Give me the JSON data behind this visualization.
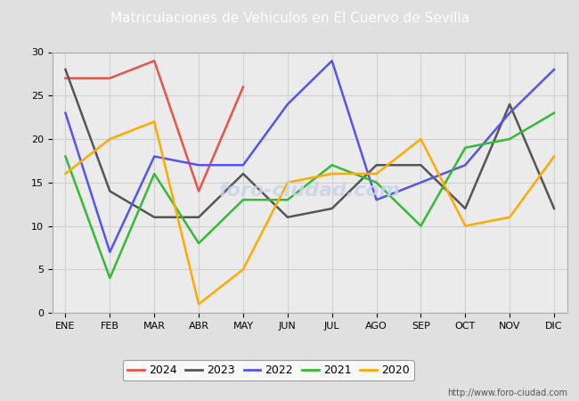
{
  "title": "Matriculaciones de Vehiculos en El Cuervo de Sevilla",
  "title_bgcolor": "#4472c4",
  "title_fgcolor": "#ffffff",
  "months": [
    "ENE",
    "FEB",
    "MAR",
    "ABR",
    "MAY",
    "JUN",
    "JUL",
    "AGO",
    "SEP",
    "OCT",
    "NOV",
    "DIC"
  ],
  "series_order": [
    "2024",
    "2023",
    "2022",
    "2021",
    "2020"
  ],
  "series": {
    "2024": {
      "color": "#e8534a",
      "values": [
        27,
        27,
        29,
        14,
        26,
        null,
        null,
        null,
        null,
        null,
        null,
        null
      ]
    },
    "2023": {
      "color": "#555555",
      "values": [
        28,
        14,
        11,
        11,
        16,
        11,
        12,
        17,
        17,
        12,
        24,
        12
      ]
    },
    "2022": {
      "color": "#5555ee",
      "values": [
        23,
        7,
        18,
        17,
        17,
        24,
        29,
        13,
        15,
        17,
        23,
        28
      ]
    },
    "2021": {
      "color": "#33bb33",
      "values": [
        18,
        4,
        16,
        8,
        13,
        13,
        17,
        15,
        10,
        19,
        20,
        23
      ]
    },
    "2020": {
      "color": "#ffaa00",
      "values": [
        16,
        20,
        22,
        1,
        5,
        15,
        16,
        16,
        20,
        10,
        11,
        18
      ]
    }
  },
  "ylim": [
    0,
    30
  ],
  "yticks": [
    0,
    5,
    10,
    15,
    20,
    25,
    30
  ],
  "url": "http://www.foro-ciudad.com",
  "fig_bg_color": "#e0e0e0",
  "plot_bg_color": "#ebebeb",
  "grid_color": "#d0d0d0",
  "watermark_color": "#c8d4e8",
  "watermark_text": "foro-ciudad.com",
  "title_fontsize": 11,
  "tick_fontsize": 8,
  "legend_fontsize": 9,
  "line_width": 1.8
}
